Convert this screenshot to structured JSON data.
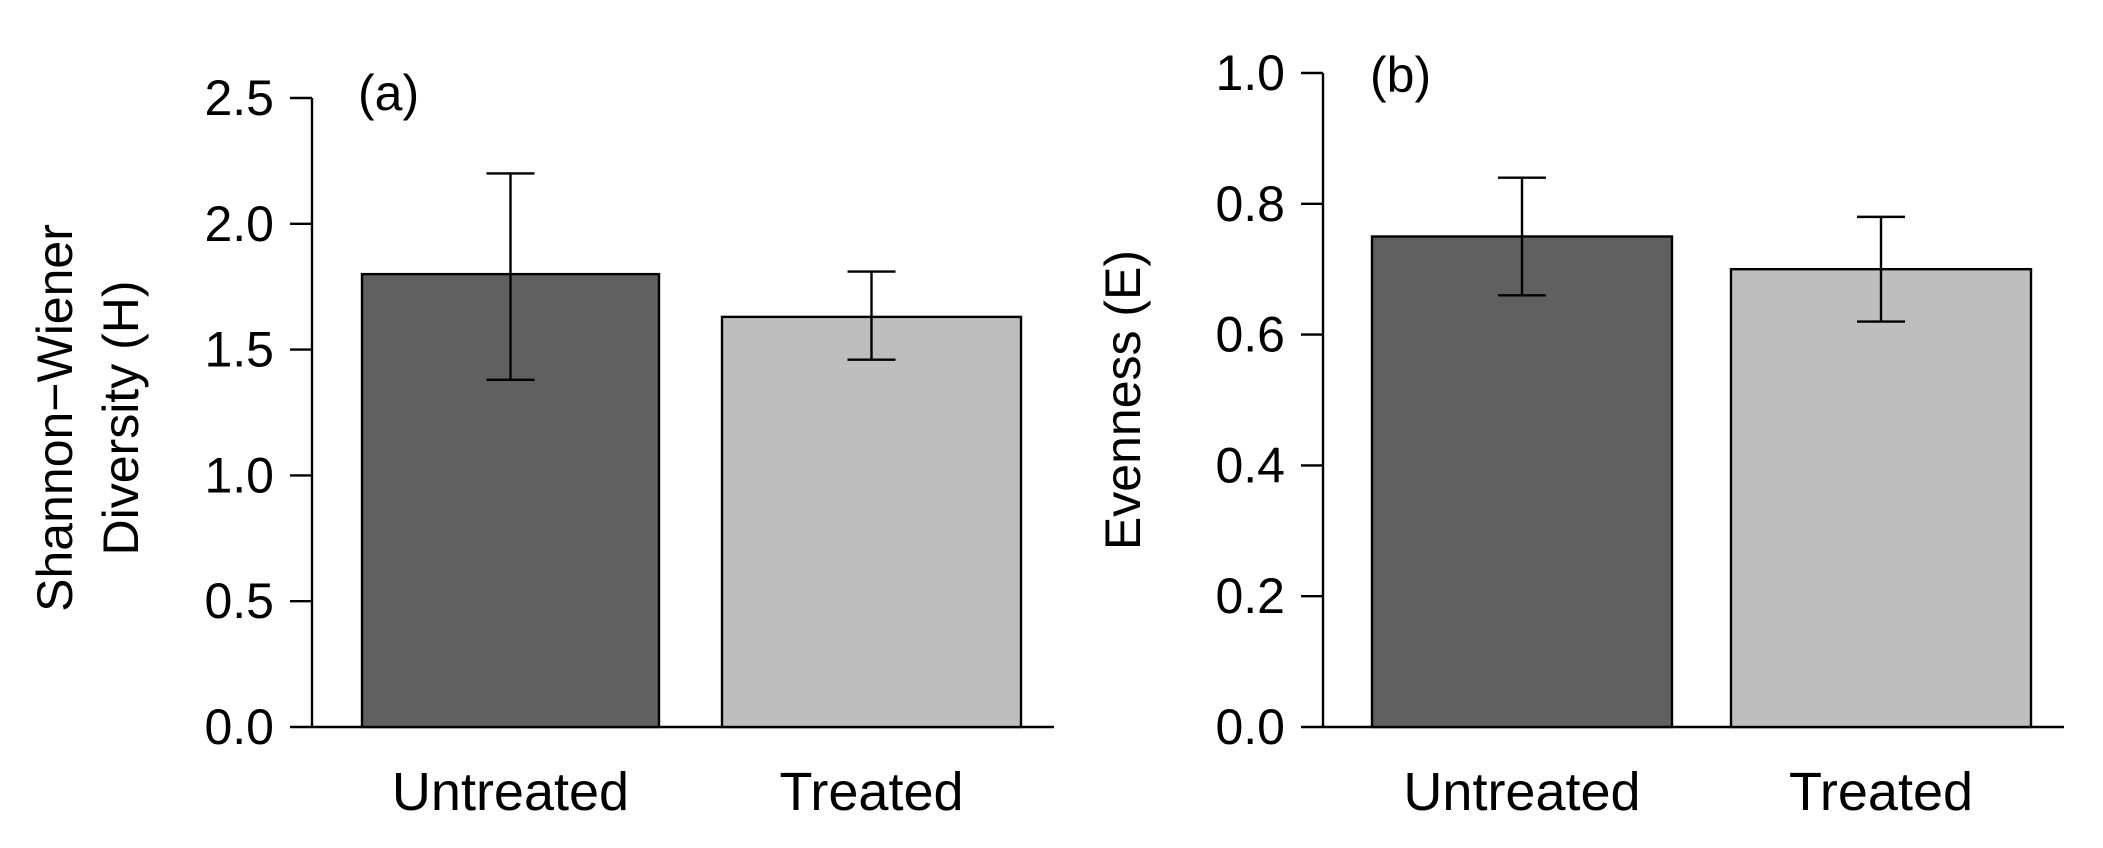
{
  "chart_data": [
    {
      "type": "bar",
      "panel_label": "(a)",
      "categories": [
        "Untreated",
        "Treated"
      ],
      "values": [
        1.8,
        1.63
      ],
      "error_lower": [
        1.38,
        1.46
      ],
      "error_upper": [
        2.2,
        1.81
      ],
      "bar_colors": [
        "#606060",
        "#bebebe"
      ],
      "ylabel_lines": [
        "Shannon−Wiener",
        "Diversity (H)"
      ],
      "xlabel": "",
      "ylim": [
        0,
        2.5
      ],
      "yticks": [
        0.0,
        0.5,
        1.0,
        1.5,
        2.0,
        2.5
      ],
      "ytick_labels": [
        "0.0",
        "0.5",
        "1.0",
        "1.5",
        "2.0",
        "2.5"
      ],
      "grid": false
    },
    {
      "type": "bar",
      "panel_label": "(b)",
      "categories": [
        "Untreated",
        "Treated"
      ],
      "values": [
        0.75,
        0.7
      ],
      "error_lower": [
        0.66,
        0.62
      ],
      "error_upper": [
        0.84,
        0.78
      ],
      "bar_colors": [
        "#606060",
        "#bebebe"
      ],
      "ylabel_lines": [
        "Evenness (E)"
      ],
      "xlabel": "",
      "ylim": [
        0,
        1.0
      ],
      "yticks": [
        0.0,
        0.2,
        0.4,
        0.6,
        0.8,
        1.0
      ],
      "ytick_labels": [
        "0.0",
        "0.2",
        "0.4",
        "0.6",
        "0.8",
        "1.0"
      ],
      "grid": false
    }
  ]
}
